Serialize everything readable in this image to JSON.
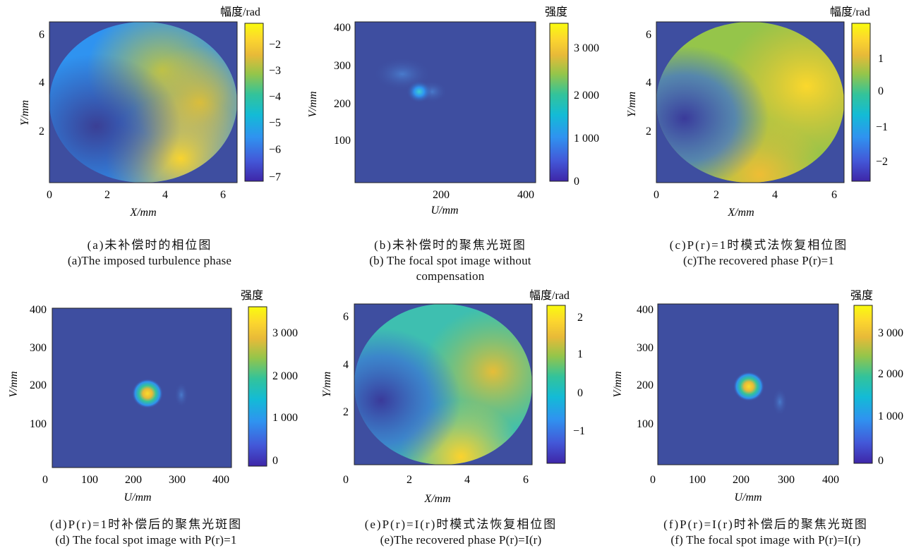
{
  "panels": [
    {
      "id": "a",
      "image": "phase-map",
      "cbar_title": "幅度/rad",
      "xlabel": "X/mm",
      "ylabel": "Y/mm",
      "xticks": [
        "0",
        "2",
        "4",
        "6"
      ],
      "yticks": [
        "2",
        "4",
        "6"
      ],
      "cbar_ticks": [
        "−2",
        "−3",
        "−4",
        "−5",
        "−6",
        "−7"
      ],
      "caption_zh": "(a)未补偿时的相位图",
      "caption_en": "(a)The imposed turbulence phase"
    },
    {
      "id": "b",
      "image": "focal-spot",
      "cbar_title": "强度",
      "xlabel": "U/mm",
      "ylabel": "V/mm",
      "xticks": [
        "200",
        "400"
      ],
      "yticks": [
        "100",
        "200",
        "300",
        "400"
      ],
      "cbar_ticks": [
        "3 000",
        "2 000",
        "1 000",
        "0"
      ],
      "caption_zh": "(b)未补偿时的聚焦光斑图",
      "caption_en": "(b) The focal spot image without compensation"
    },
    {
      "id": "c",
      "image": "phase-map",
      "cbar_title": "幅度/rad",
      "xlabel": "X/mm",
      "ylabel": "Y/mm",
      "xticks": [
        "0",
        "2",
        "4",
        "6"
      ],
      "yticks": [
        "2",
        "4",
        "6"
      ],
      "cbar_ticks": [
        "1",
        "0",
        "−1",
        "−2"
      ],
      "caption_zh": "(c)P(r)=1时模式法恢复相位图",
      "caption_en": "(c)The recovered phase P(r)=1"
    },
    {
      "id": "d",
      "image": "focal-spot",
      "cbar_title": "强度",
      "xlabel": "U/mm",
      "ylabel": "V/mm",
      "xticks": [
        "0",
        "100",
        "200",
        "300",
        "400"
      ],
      "yticks": [
        "100",
        "200",
        "300",
        "400"
      ],
      "cbar_ticks": [
        "3 000",
        "2 000",
        "1 000",
        "0"
      ],
      "caption_zh": "(d)P(r)=1时补偿后的聚焦光斑图",
      "caption_en": "(d) The focal spot image with P(r)=1"
    },
    {
      "id": "e",
      "image": "phase-map",
      "cbar_title": "幅度/rad",
      "xlabel": "X/mm",
      "ylabel": "Y/mm",
      "xticks": [
        "0",
        "2",
        "4",
        "6"
      ],
      "yticks": [
        "2",
        "4",
        "6"
      ],
      "cbar_ticks": [
        "2",
        "1",
        "0",
        "−1"
      ],
      "caption_zh": "(e)P(r)=I(r)时模式法恢复相位图",
      "caption_en": "(e)The recovered phase P(r)=I(r)"
    },
    {
      "id": "f",
      "image": "focal-spot",
      "cbar_title": "强度",
      "xlabel": "U/mm",
      "ylabel": "V/mm",
      "xticks": [
        "0",
        "100",
        "200",
        "300",
        "400"
      ],
      "yticks": [
        "100",
        "200",
        "300",
        "400"
      ],
      "cbar_ticks": [
        "3 000",
        "2 000",
        "1 000",
        "0"
      ],
      "caption_zh": "(f)P(r)=I(r)时补偿后的聚焦光斑图",
      "caption_en": "(f) The focal spot image with P(r)=I(r)"
    }
  ],
  "colors": {
    "background": "#3e4ea0",
    "colormap": [
      "#3e26a8",
      "#4358d8",
      "#2f93f0",
      "#13bbd6",
      "#33c39a",
      "#95c54a",
      "#e8ba38",
      "#fcd62e",
      "#f9fb0e"
    ]
  }
}
